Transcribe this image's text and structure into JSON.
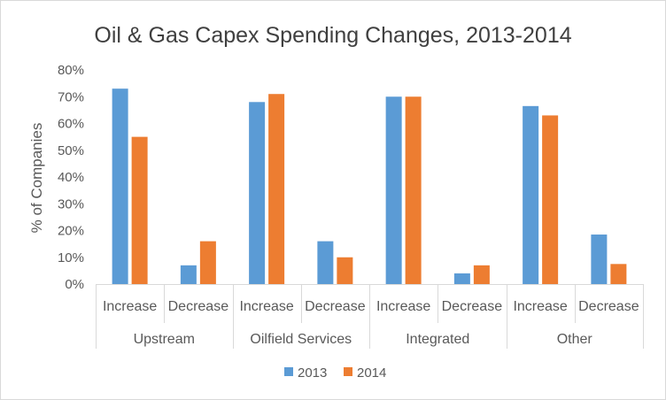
{
  "chart_data": {
    "type": "bar",
    "title": "Oil & Gas Capex Spending Changes, 2013-2014",
    "xlabel": "",
    "ylabel": "% of Companies",
    "ylim": [
      0,
      80
    ],
    "y_tick_labels": [
      "0%",
      "10%",
      "20%",
      "30%",
      "40%",
      "50%",
      "60%",
      "70%",
      "80%"
    ],
    "groups": [
      "Upstream",
      "Oilfield Services",
      "Integrated",
      "Other"
    ],
    "categories": [
      "Increase",
      "Decrease",
      "Increase",
      "Decrease",
      "Increase",
      "Decrease",
      "Increase",
      "Decrease"
    ],
    "series": [
      {
        "name": "2013",
        "color": "#5b9bd5",
        "values": [
          73,
          7,
          68,
          16,
          70,
          4,
          66.5,
          18.5
        ]
      },
      {
        "name": "2014",
        "color": "#ed7d31",
        "values": [
          55,
          16,
          71,
          10,
          70,
          7,
          63,
          7.5
        ]
      }
    ],
    "grid": false,
    "legend": "bottom"
  }
}
